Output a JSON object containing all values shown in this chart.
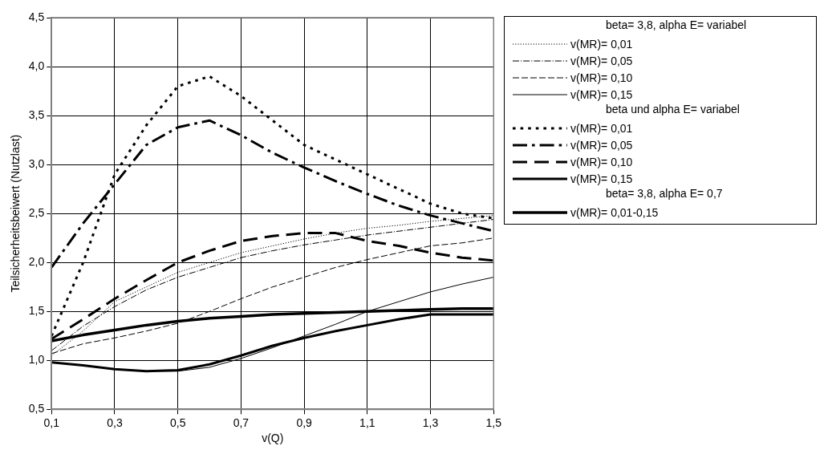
{
  "chart_data": {
    "type": "line",
    "xlabel": "v(Q)",
    "ylabel": "Teilsicherheitsbeiwert (Nutzlast)",
    "x": [
      0.1,
      0.2,
      0.3,
      0.4,
      0.5,
      0.6,
      0.7,
      0.8,
      0.9,
      1.0,
      1.1,
      1.2,
      1.3,
      1.4,
      1.5
    ],
    "xlim": [
      0.1,
      1.5
    ],
    "xticks": [
      {
        "value": 0.1,
        "label": "0,1"
      },
      {
        "value": 0.3,
        "label": "0,3"
      },
      {
        "value": 0.5,
        "label": "0,5"
      },
      {
        "value": 0.7,
        "label": "0,7"
      },
      {
        "value": 0.9,
        "label": "0,9"
      },
      {
        "value": 1.1,
        "label": "1,1"
      },
      {
        "value": 1.3,
        "label": "1,3"
      },
      {
        "value": 1.5,
        "label": "1,5"
      }
    ],
    "ylim": [
      0.5,
      4.5
    ],
    "yticks": [
      {
        "value": 0.5,
        "label": "0,5"
      },
      {
        "value": 1,
        "label": "1,0"
      },
      {
        "value": 1.5,
        "label": "1,5"
      },
      {
        "value": 2,
        "label": "2,0"
      },
      {
        "value": 2.5,
        "label": "2,5"
      },
      {
        "value": 3,
        "label": "3,0"
      },
      {
        "value": 3.5,
        "label": "3,5"
      },
      {
        "value": 4,
        "label": "4,0"
      },
      {
        "value": 4.5,
        "label": "4,5"
      }
    ],
    "grid": true,
    "legend": "right",
    "marker": "none",
    "annotations": [
      "beta= 3,8, alpha E= variabel",
      "beta und alpha E= variabel",
      "beta= 3,8, alpha E= 0,7"
    ],
    "series": [
      {
        "name": "v(MR)= 0,01",
        "color": "#000000",
        "line_style": "dotted",
        "values": [
          1.05,
          1.3,
          1.6,
          1.75,
          1.9,
          2.0,
          2.1,
          2.17,
          2.24,
          2.3,
          2.35,
          2.38,
          2.42,
          2.45,
          2.48
        ]
      },
      {
        "name": "v(MR)= 0,05",
        "color": "#000000",
        "line_style": "dashdot",
        "values": [
          1.1,
          1.35,
          1.55,
          1.72,
          1.85,
          1.95,
          2.05,
          2.12,
          2.18,
          2.23,
          2.28,
          2.32,
          2.36,
          2.4,
          2.44
        ]
      },
      {
        "name": "v(MR)= 0,10",
        "color": "#000000",
        "line_style": "dashed",
        "values": [
          1.07,
          1.17,
          1.23,
          1.3,
          1.38,
          1.5,
          1.63,
          1.75,
          1.85,
          1.95,
          2.03,
          2.1,
          2.17,
          2.2,
          2.25
        ]
      },
      {
        "name": "v(MR)= 0,15",
        "color": "#000000",
        "line_style": "solid",
        "values": [
          0.98,
          0.95,
          0.91,
          0.89,
          0.89,
          0.93,
          1.02,
          1.13,
          1.25,
          1.37,
          1.5,
          1.6,
          1.7,
          1.78,
          1.85
        ]
      },
      {
        "name": "v(MR)= 0,01",
        "color": "#000000",
        "line_style": "dotted",
        "values": [
          1.25,
          2.0,
          2.9,
          3.4,
          3.8,
          3.9,
          3.7,
          3.45,
          3.2,
          3.05,
          2.9,
          2.75,
          2.6,
          2.5,
          2.45
        ]
      },
      {
        "name": "v(MR)= 0,05",
        "color": "#000000",
        "line_style": "dashdot",
        "values": [
          1.95,
          2.4,
          2.8,
          3.2,
          3.38,
          3.45,
          3.3,
          3.12,
          2.97,
          2.83,
          2.7,
          2.58,
          2.48,
          2.4,
          2.32
        ]
      },
      {
        "name": "v(MR)= 0,10",
        "color": "#000000",
        "line_style": "dashed",
        "values": [
          1.22,
          1.42,
          1.63,
          1.82,
          2.0,
          2.12,
          2.22,
          2.27,
          2.3,
          2.3,
          2.22,
          2.17,
          2.1,
          2.05,
          2.02
        ]
      },
      {
        "name": "v(MR)= 0,15",
        "color": "#000000",
        "line_style": "solid",
        "values": [
          0.98,
          0.95,
          0.91,
          0.89,
          0.9,
          0.96,
          1.05,
          1.15,
          1.23,
          1.3,
          1.36,
          1.42,
          1.47,
          1.47,
          1.47
        ]
      },
      {
        "name": "v(MR)= 0,01-0,15",
        "color": "#000000",
        "line_style": "solid",
        "values": [
          1.2,
          1.26,
          1.31,
          1.36,
          1.4,
          1.43,
          1.45,
          1.47,
          1.48,
          1.49,
          1.5,
          1.51,
          1.52,
          1.53,
          1.53
        ]
      }
    ]
  }
}
